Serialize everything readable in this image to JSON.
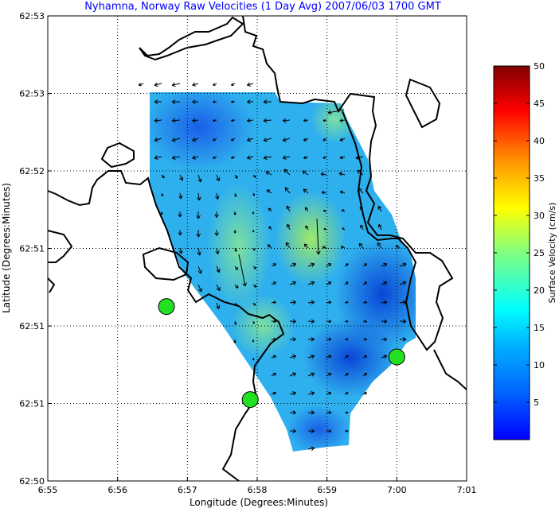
{
  "title": "Nyhamna, Norway Raw Velocities (1 Day Avg) 2007/06/03 1700 GMT",
  "x_axis": {
    "label": "Longitude (Degrees:Minutes)",
    "ticks": [
      "6:55",
      "6:56",
      "6:57",
      "6:58",
      "6:59",
      "7:00",
      "7:01"
    ]
  },
  "y_axis": {
    "label": "Latitude (Degrees:Minutes)",
    "ticks": [
      "62:53",
      "62:53",
      "62:52",
      "62:51",
      "62:51",
      "62:51",
      "62:50"
    ]
  },
  "colorbar": {
    "label": "Surface Velocity (cm/s)",
    "ticks": [
      "50",
      "45",
      "40",
      "35",
      "30",
      "25",
      "20",
      "15",
      "10",
      "5"
    ],
    "min": 0,
    "max": 50
  },
  "stations": [
    {
      "lon_min": 56.7,
      "lat_idx": 2.25
    },
    {
      "lon_min": 57.9,
      "lat_idx": 1.05
    },
    {
      "lon_min": 60.0,
      "lat_idx": 1.6
    }
  ],
  "grid": true
}
